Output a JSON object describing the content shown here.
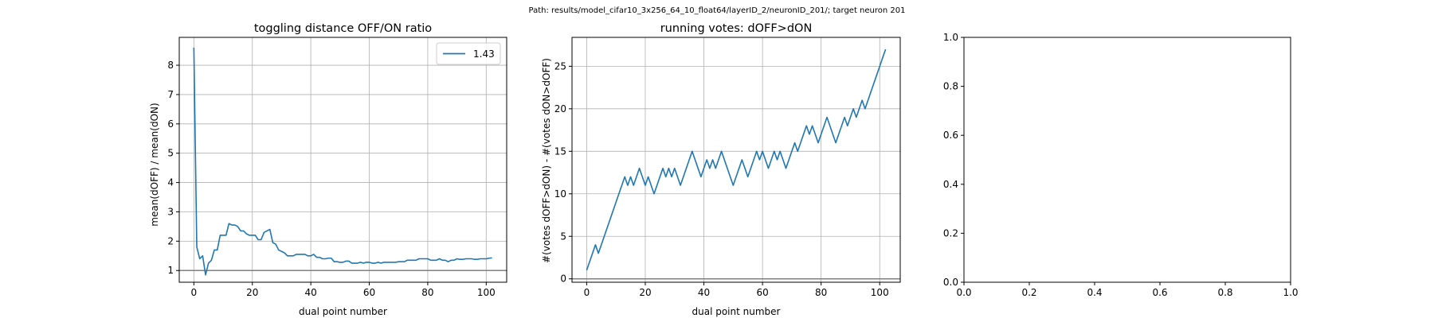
{
  "suptitle": "Path: results/model_cifar10_3x256_64_10_float64/layerID_2/neuronID_201/; target neuron 201",
  "colors": {
    "line": "#1f77b4",
    "grid": "#b0b0b0",
    "ref_line": "#808080"
  },
  "chart_data": [
    {
      "type": "line",
      "title": "toggling distance OFF/ON ratio",
      "xlabel": "dual point number",
      "ylabel": "mean(dOFF) / mean(dON)",
      "xlim": [
        -5,
        107
      ],
      "ylim": [
        0.6,
        8.95
      ],
      "xticks": [
        0,
        20,
        40,
        60,
        80,
        100
      ],
      "yticks": [
        1,
        2,
        3,
        4,
        5,
        6,
        7,
        8
      ],
      "grid": true,
      "legend": {
        "position": "top-right",
        "entries": [
          "1.43"
        ]
      },
      "reference_line": 1,
      "series": [
        {
          "name": "1.43",
          "x": [
            0,
            1,
            2,
            3,
            4,
            5,
            6,
            7,
            8,
            9,
            10,
            11,
            12,
            13,
            14,
            15,
            16,
            17,
            18,
            19,
            20,
            21,
            22,
            23,
            24,
            25,
            26,
            27,
            28,
            29,
            30,
            31,
            32,
            33,
            34,
            35,
            36,
            37,
            38,
            39,
            40,
            41,
            42,
            43,
            44,
            45,
            46,
            47,
            48,
            49,
            50,
            51,
            52,
            53,
            54,
            55,
            56,
            57,
            58,
            59,
            60,
            61,
            62,
            63,
            64,
            65,
            66,
            67,
            68,
            69,
            70,
            71,
            72,
            73,
            74,
            75,
            76,
            77,
            78,
            79,
            80,
            81,
            82,
            83,
            84,
            85,
            86,
            87,
            88,
            89,
            90,
            91,
            92,
            93,
            94,
            95,
            96,
            97,
            98,
            99,
            100,
            101,
            102
          ],
          "values": [
            8.6,
            1.8,
            1.4,
            1.5,
            0.85,
            1.25,
            1.35,
            1.7,
            1.7,
            2.2,
            2.2,
            2.2,
            2.6,
            2.55,
            2.55,
            2.5,
            2.35,
            2.35,
            2.25,
            2.2,
            2.2,
            2.2,
            2.05,
            2.05,
            2.3,
            2.35,
            2.4,
            1.95,
            1.9,
            1.7,
            1.65,
            1.6,
            1.5,
            1.5,
            1.5,
            1.55,
            1.55,
            1.55,
            1.55,
            1.5,
            1.5,
            1.55,
            1.45,
            1.45,
            1.4,
            1.4,
            1.42,
            1.42,
            1.3,
            1.3,
            1.28,
            1.28,
            1.32,
            1.32,
            1.25,
            1.25,
            1.25,
            1.28,
            1.25,
            1.28,
            1.28,
            1.25,
            1.25,
            1.28,
            1.25,
            1.28,
            1.28,
            1.28,
            1.28,
            1.28,
            1.3,
            1.3,
            1.3,
            1.35,
            1.35,
            1.35,
            1.35,
            1.4,
            1.4,
            1.4,
            1.4,
            1.35,
            1.35,
            1.35,
            1.4,
            1.35,
            1.35,
            1.3,
            1.35,
            1.35,
            1.4,
            1.38,
            1.38,
            1.4,
            1.4,
            1.4,
            1.38,
            1.38,
            1.4,
            1.4,
            1.4,
            1.42,
            1.43
          ]
        }
      ]
    },
    {
      "type": "line",
      "title": "running votes: dOFF>dON",
      "xlabel": "dual point number",
      "ylabel": "#(votes dOFF>dON) - #(votes dON>dOFF)",
      "xlim": [
        -5,
        107
      ],
      "ylim": [
        -0.4,
        28.4
      ],
      "xticks": [
        0,
        20,
        40,
        60,
        80,
        100
      ],
      "yticks": [
        0,
        5,
        10,
        15,
        20,
        25
      ],
      "grid": true,
      "reference_line": 0,
      "series": [
        {
          "x": [
            0,
            1,
            2,
            3,
            4,
            5,
            6,
            7,
            8,
            9,
            10,
            11,
            12,
            13,
            14,
            15,
            16,
            17,
            18,
            19,
            20,
            21,
            22,
            23,
            24,
            25,
            26,
            27,
            28,
            29,
            30,
            31,
            32,
            33,
            34,
            35,
            36,
            37,
            38,
            39,
            40,
            41,
            42,
            43,
            44,
            45,
            46,
            47,
            48,
            49,
            50,
            51,
            52,
            53,
            54,
            55,
            56,
            57,
            58,
            59,
            60,
            61,
            62,
            63,
            64,
            65,
            66,
            67,
            68,
            69,
            70,
            71,
            72,
            73,
            74,
            75,
            76,
            77,
            78,
            79,
            80,
            81,
            82,
            83,
            84,
            85,
            86,
            87,
            88,
            89,
            90,
            91,
            92,
            93,
            94,
            95,
            96,
            97,
            98,
            99,
            100,
            101,
            102
          ],
          "values": [
            1,
            2,
            3,
            4,
            3,
            4,
            5,
            6,
            7,
            8,
            9,
            10,
            11,
            12,
            11,
            12,
            11,
            12,
            13,
            12,
            11,
            12,
            11,
            10,
            11,
            12,
            13,
            12,
            13,
            12,
            13,
            12,
            11,
            12,
            13,
            14,
            15,
            14,
            13,
            12,
            13,
            14,
            13,
            14,
            13,
            14,
            15,
            14,
            13,
            12,
            11,
            12,
            13,
            14,
            13,
            12,
            13,
            14,
            15,
            14,
            15,
            14,
            13,
            14,
            15,
            14,
            15,
            14,
            13,
            14,
            15,
            16,
            15,
            16,
            17,
            18,
            17,
            18,
            17,
            16,
            17,
            18,
            19,
            18,
            17,
            16,
            17,
            18,
            19,
            18,
            19,
            20,
            19,
            20,
            21,
            20,
            21,
            22,
            23,
            24,
            25,
            26,
            27
          ]
        }
      ]
    },
    {
      "type": "line",
      "title": "",
      "xlim": [
        0,
        1
      ],
      "ylim": [
        0,
        1
      ],
      "xticks": [
        0.0,
        0.2,
        0.4,
        0.6,
        0.8,
        1.0
      ],
      "yticks": [
        0.0,
        0.2,
        0.4,
        0.6,
        0.8,
        1.0
      ],
      "xtick_labels": [
        "0.0",
        "0.2",
        "0.4",
        "0.6",
        "0.8",
        "1.0"
      ],
      "ytick_labels": [
        "0.0",
        "0.2",
        "0.4",
        "0.6",
        "0.8",
        "1.0"
      ],
      "grid": false,
      "series": []
    }
  ]
}
